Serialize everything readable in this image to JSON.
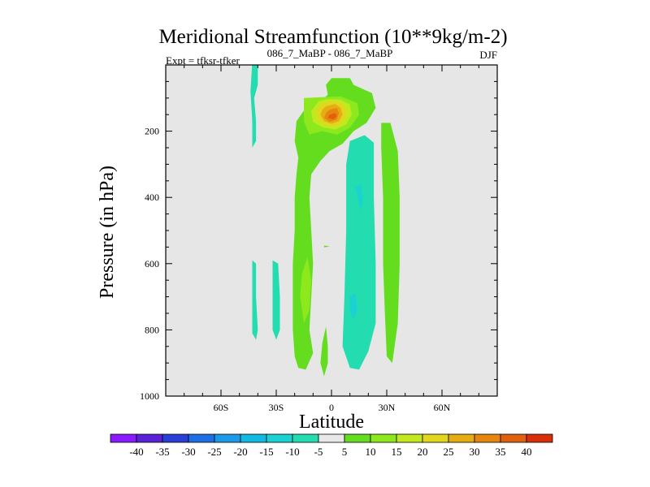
{
  "chart_data": {
    "type": "contour",
    "title": "Meridional Streamfunction (10**9kg/m-2)",
    "subtitle_center": "086_7_MaBP - 086_7_MaBP",
    "subtitle_left": "Expt = tfksr-tfker",
    "subtitle_right": "DJF",
    "xlabel": "Latitude",
    "ylabel": "Pressure (in hPa)",
    "xlim": [
      -90,
      90
    ],
    "ylim": [
      1000,
      0
    ],
    "xticks": [
      {
        "value": -60,
        "label": "60S"
      },
      {
        "value": -30,
        "label": "30S"
      },
      {
        "value": 0,
        "label": "0"
      },
      {
        "value": 30,
        "label": "30N"
      },
      {
        "value": 60,
        "label": "60N"
      }
    ],
    "yticks": [
      {
        "value": 200,
        "label": "200"
      },
      {
        "value": 400,
        "label": "400"
      },
      {
        "value": 600,
        "label": "600"
      },
      {
        "value": 800,
        "label": "800"
      },
      {
        "value": 1000,
        "label": "1000"
      }
    ],
    "colorbar": {
      "labels": [
        "-40",
        "-35",
        "-30",
        "-25",
        "-20",
        "-15",
        "-10",
        "-5",
        "5",
        "10",
        "15",
        "20",
        "25",
        "30",
        "35",
        "40"
      ],
      "colors": [
        "#8a1aff",
        "#5a22d6",
        "#2a3fd6",
        "#1e6fe6",
        "#1a9ae8",
        "#12b9e0",
        "#1ad2d2",
        "#23dcb0",
        "#e8e8e8",
        "#63dd1e",
        "#8ee81e",
        "#c3e81e",
        "#e2d61e",
        "#e6ad12",
        "#e6860e",
        "#e0600c",
        "#d92e08"
      ]
    },
    "regions": [
      {
        "level": 5,
        "points": [
          [
            0,
            40
          ],
          [
            10,
            40
          ],
          [
            12,
            60
          ],
          [
            22,
            85
          ],
          [
            24,
            130
          ],
          [
            19,
            175
          ],
          [
            12,
            200
          ],
          [
            6,
            238
          ],
          [
            -1,
            260
          ],
          [
            -6,
            290
          ],
          [
            -11,
            330
          ],
          [
            -12,
            400
          ],
          [
            -11,
            500
          ],
          [
            -10,
            600
          ],
          [
            -11,
            700
          ],
          [
            -12,
            800
          ],
          [
            -10,
            870
          ],
          [
            -14,
            920
          ],
          [
            -18,
            915
          ],
          [
            -20,
            880
          ],
          [
            -21,
            800
          ],
          [
            -21,
            700
          ],
          [
            -21,
            600
          ],
          [
            -20,
            500
          ],
          [
            -20,
            400
          ],
          [
            -19,
            330
          ],
          [
            -18,
            280
          ],
          [
            -20,
            230
          ],
          [
            -19,
            170
          ],
          [
            -14,
            130
          ],
          [
            -6,
            110
          ],
          [
            -2,
            90
          ],
          [
            -3,
            60
          ]
        ]
      },
      {
        "level": 5,
        "points": [
          [
            27,
            175
          ],
          [
            32,
            175
          ],
          [
            36,
            260
          ],
          [
            37,
            400
          ],
          [
            37,
            600
          ],
          [
            36,
            780
          ],
          [
            33,
            900
          ],
          [
            30,
            880
          ],
          [
            29,
            750
          ],
          [
            28,
            600
          ],
          [
            28,
            400
          ],
          [
            27,
            250
          ]
        ]
      },
      {
        "level": 5,
        "points": [
          [
            -4,
            545
          ],
          [
            -1,
            548
          ],
          [
            -4,
            551
          ]
        ]
      },
      {
        "level": 5,
        "points": [
          [
            -3,
            790
          ],
          [
            -2,
            850
          ],
          [
            -2,
            900
          ],
          [
            -4,
            940
          ],
          [
            -6,
            900
          ],
          [
            -5,
            840
          ]
        ]
      },
      {
        "level": 10,
        "points": [
          [
            -13,
            580
          ],
          [
            -11,
            650
          ],
          [
            -12,
            740
          ],
          [
            -15,
            780
          ],
          [
            -17,
            700
          ],
          [
            -16,
            630
          ]
        ]
      },
      {
        "level": 10,
        "points": [
          [
            -15,
            100
          ],
          [
            -8,
            98
          ],
          [
            5,
            95
          ],
          [
            14,
            115
          ],
          [
            15,
            150
          ],
          [
            10,
            190
          ],
          [
            3,
            210
          ],
          [
            -5,
            200
          ],
          [
            -12,
            210
          ],
          [
            -15,
            170
          ]
        ]
      },
      {
        "level": 15,
        "points": [
          [
            -7,
            110
          ],
          [
            -2,
            103
          ],
          [
            5,
            105
          ],
          [
            10,
            120
          ],
          [
            11,
            150
          ],
          [
            8,
            180
          ],
          [
            2,
            195
          ],
          [
            -5,
            188
          ],
          [
            -10,
            172
          ],
          [
            -11,
            140
          ]
        ]
      },
      {
        "level": 20,
        "points": [
          [
            -5,
            115
          ],
          [
            1,
            110
          ],
          [
            6,
            118
          ],
          [
            8,
            140
          ],
          [
            7,
            165
          ],
          [
            3,
            185
          ],
          [
            -3,
            180
          ],
          [
            -7,
            165
          ],
          [
            -8,
            135
          ]
        ]
      },
      {
        "level": 25,
        "points": [
          [
            -3,
            125
          ],
          [
            2,
            118
          ],
          [
            5,
            130
          ],
          [
            6,
            150
          ],
          [
            4,
            170
          ],
          [
            0,
            178
          ],
          [
            -4,
            170
          ],
          [
            -6,
            150
          ],
          [
            -5,
            135
          ]
        ]
      },
      {
        "level": 30,
        "points": [
          [
            -1,
            135
          ],
          [
            3,
            130
          ],
          [
            4,
            145
          ],
          [
            3,
            165
          ],
          [
            -1,
            172
          ],
          [
            -4,
            160
          ],
          [
            -3,
            145
          ]
        ]
      },
      {
        "level": 35,
        "points": [
          [
            -1,
            150
          ],
          [
            2,
            145
          ],
          [
            3,
            155
          ],
          [
            1,
            165
          ],
          [
            -2,
            160
          ]
        ]
      },
      {
        "level": -5,
        "points": [
          [
            10,
            230
          ],
          [
            18,
            212
          ],
          [
            23,
            235
          ],
          [
            23,
            400
          ],
          [
            24,
            600
          ],
          [
            24,
            780
          ],
          [
            20,
            865
          ],
          [
            15,
            920
          ],
          [
            10,
            915
          ],
          [
            6,
            850
          ],
          [
            7,
            700
          ],
          [
            8,
            500
          ],
          [
            8,
            300
          ]
        ]
      },
      {
        "level": -10,
        "points": [
          [
            13,
            370
          ],
          [
            16,
            360
          ],
          [
            17,
            400
          ],
          [
            16,
            440
          ]
        ]
      },
      {
        "level": -10,
        "points": [
          [
            10,
            700
          ],
          [
            13,
            690
          ],
          [
            14,
            740
          ],
          [
            12,
            770
          ],
          [
            10,
            740
          ]
        ]
      },
      {
        "level": -5,
        "points": [
          [
            -43,
            -10
          ],
          [
            -40,
            -10
          ],
          [
            -40,
            60
          ],
          [
            -42,
            100
          ],
          [
            -41,
            170
          ],
          [
            -41,
            230
          ],
          [
            -43,
            250
          ],
          [
            -43,
            170
          ],
          [
            -44,
            80
          ]
        ]
      },
      {
        "level": -5,
        "points": [
          [
            -43,
            590
          ],
          [
            -41,
            600
          ],
          [
            -41,
            700
          ],
          [
            -40,
            800
          ],
          [
            -41,
            830
          ],
          [
            -43,
            810
          ],
          [
            -43,
            700
          ]
        ]
      },
      {
        "level": -5,
        "points": [
          [
            -32,
            590
          ],
          [
            -29,
            600
          ],
          [
            -28,
            700
          ],
          [
            -28,
            800
          ],
          [
            -30,
            830
          ],
          [
            -32,
            800
          ],
          [
            -32,
            700
          ]
        ]
      }
    ]
  }
}
